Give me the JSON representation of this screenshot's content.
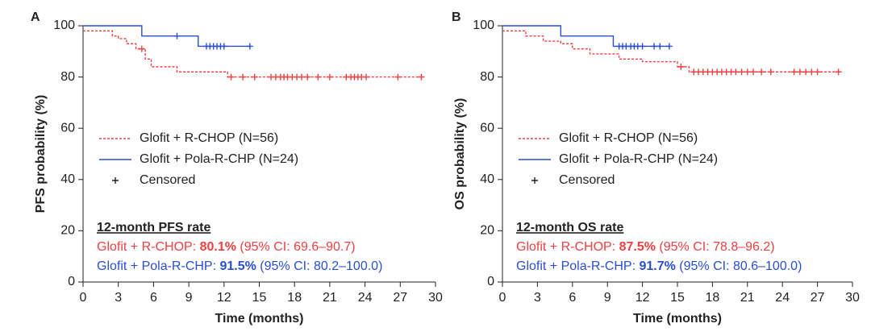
{
  "chart_data": [
    {
      "type": "line",
      "step": true,
      "panel": "A",
      "xlabel": "Time (months)",
      "ylabel": "PFS probability (%)",
      "xlim": [
        0,
        30
      ],
      "xticks": [
        0,
        3,
        6,
        9,
        12,
        15,
        18,
        21,
        24,
        27,
        30
      ],
      "ylim": [
        0,
        100
      ],
      "yticks": [
        0,
        20,
        40,
        60,
        80,
        100
      ],
      "censored_label": "Censored",
      "series": [
        {
          "name": "Glofit + R-CHOP (N=56)",
          "color": "#f04040",
          "style": "dashed",
          "x": [
            0,
            0.5,
            2.5,
            3,
            3.7,
            4.5,
            5.3,
            5.8,
            8,
            12.3,
            28.8
          ],
          "values": [
            98,
            98,
            96,
            95,
            93,
            91,
            87,
            84,
            82,
            80,
            80
          ],
          "censored_x": [
            5,
            12.6,
            13.6,
            14.6,
            16,
            16.4,
            16.8,
            17.1,
            17.4,
            17.8,
            18.2,
            18.6,
            19.1,
            20,
            21,
            22.4,
            22.8,
            23.1,
            23.4,
            23.7,
            24.1,
            26.8,
            28.8
          ],
          "censored_y": [
            91,
            80,
            80,
            80,
            80,
            80,
            80,
            80,
            80,
            80,
            80,
            80,
            80,
            80,
            80,
            80,
            80,
            80,
            80,
            80,
            80,
            80,
            80
          ]
        },
        {
          "name": "Glofit + Pola-R-CHP (N=24)",
          "color": "#2a4fd0",
          "style": "solid",
          "x": [
            0,
            5,
            9.8,
            14.2
          ],
          "values": [
            100,
            96,
            92,
            92
          ],
          "censored_x": [
            8,
            10.5,
            10.8,
            11.1,
            11.4,
            11.7,
            12,
            14.2
          ],
          "censored_y": [
            96,
            92,
            92,
            92,
            92,
            92,
            92,
            92
          ]
        }
      ],
      "annotation": {
        "title": "12-month PFS rate",
        "rows": [
          {
            "label": "Glofit + R-CHOP: ",
            "rate": "80.1%",
            "ci": " (95% CI: 69.6–90.7)"
          },
          {
            "label": "Glofit + Pola-R-CHP: ",
            "rate": "91.5%",
            "ci": " (95% CI: 80.2–100.0)"
          }
        ]
      }
    },
    {
      "type": "line",
      "step": true,
      "panel": "B",
      "xlabel": "Time (months)",
      "ylabel": "OS probability (%)",
      "xlim": [
        0,
        30
      ],
      "xticks": [
        0,
        3,
        6,
        9,
        12,
        15,
        18,
        21,
        24,
        27,
        30
      ],
      "ylim": [
        0,
        100
      ],
      "yticks": [
        0,
        20,
        40,
        60,
        80,
        100
      ],
      "censored_label": "Censored",
      "series": [
        {
          "name": "Glofit + R-CHOP (N=56)",
          "color": "#f04040",
          "style": "dashed",
          "x": [
            0,
            2,
            3.5,
            5,
            6,
            7.5,
            10,
            12,
            15,
            16,
            29
          ],
          "values": [
            98,
            96,
            94,
            93,
            91,
            89,
            87,
            86,
            84,
            82,
            82
          ],
          "censored_x": [
            15.3,
            16.4,
            16.8,
            17.2,
            17.6,
            18,
            18.4,
            18.8,
            19.2,
            19.6,
            20,
            20.5,
            21,
            21.5,
            22.2,
            23,
            25,
            25.5,
            26,
            26.5,
            27,
            28.8
          ],
          "censored_y": [
            84,
            82,
            82,
            82,
            82,
            82,
            82,
            82,
            82,
            82,
            82,
            82,
            82,
            82,
            82,
            82,
            82,
            82,
            82,
            82,
            82,
            82
          ]
        },
        {
          "name": "Glofit + Pola-R-CHP (N=24)",
          "color": "#2a4fd0",
          "style": "solid",
          "x": [
            0,
            5,
            9.5,
            14.3
          ],
          "values": [
            100,
            96,
            92,
            92
          ],
          "censored_x": [
            10,
            10.3,
            10.6,
            11,
            11.3,
            11.6,
            12,
            13,
            13.5,
            14.3
          ],
          "censored_y": [
            92,
            92,
            92,
            92,
            92,
            92,
            92,
            92,
            92,
            92
          ]
        }
      ],
      "annotation": {
        "title": "12-month OS rate",
        "rows": [
          {
            "label": "Glofit + R-CHOP: ",
            "rate": "87.5%",
            "ci": " (95% CI: 78.8–96.2)"
          },
          {
            "label": "Glofit + Pola-R-CHP: ",
            "rate": "91.7%",
            "ci": " (95% CI: 80.6–100.0)"
          }
        ]
      }
    }
  ]
}
